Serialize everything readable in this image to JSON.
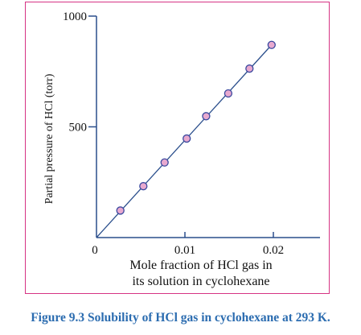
{
  "caption": "Figure 9.3 Solubility of HCl gas in cyclohexane at 293 K.",
  "colors": {
    "frame": "#d63384",
    "marker_fill": "#e8a9cf",
    "marker_stroke": "#3b4aa0",
    "line": "#2a4e8c",
    "axis": "#2a4e8c",
    "caption": "#2b6cb0"
  },
  "chart_data": {
    "type": "scatter",
    "title": "",
    "xlabel": "Mole fraction of HCl gas in its solution in cyclohexane",
    "xlabel_lines": [
      "Mole fraction of HCl gas in",
      "its solution in cyclohexane"
    ],
    "ylabel": "Partial pressure of HCl (torr)",
    "xlim": [
      0,
      0.025
    ],
    "ylim": [
      0,
      1000
    ],
    "x_ticks": [
      0,
      0.01,
      0.02
    ],
    "x_tick_labels": [
      "0",
      "0.01",
      "0.02"
    ],
    "y_ticks": [
      500,
      1000
    ],
    "y_tick_labels": [
      "500",
      "1000"
    ],
    "grid": false,
    "legend": "none",
    "series": [
      {
        "x": [
          0.0027,
          0.0053,
          0.0077,
          0.0102,
          0.0124,
          0.0149,
          0.0173,
          0.0198
        ],
        "y": [
          122,
          232,
          339,
          447,
          548,
          651,
          763,
          870
        ]
      }
    ],
    "fit_line": {
      "x": [
        0,
        0.0198
      ],
      "y": [
        0,
        870
      ]
    }
  }
}
